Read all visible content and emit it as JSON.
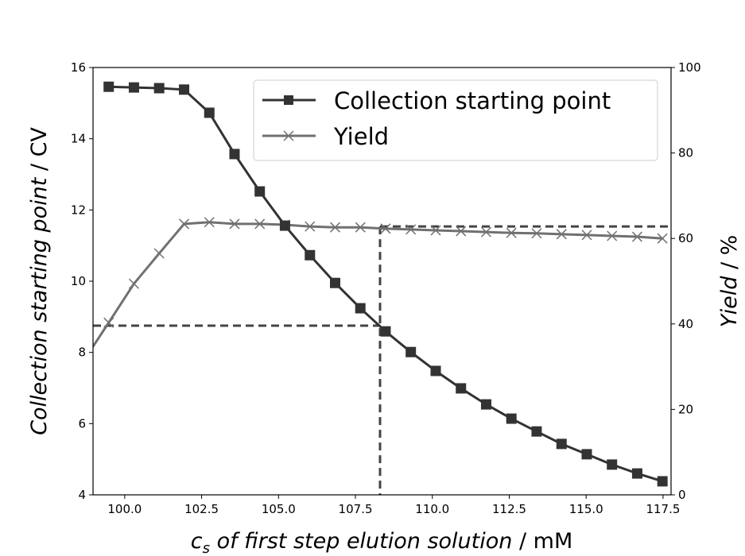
{
  "chart_data": {
    "type": "line",
    "xlabel_italic": "c",
    "xlabel_sub": "s",
    "xlabel_rest": " of first step elution solution",
    "xlabel_unit": " / mM",
    "ylabel_left": "Collection starting point",
    "ylabel_left_unit": " / CV",
    "ylabel_right": "Yield",
    "ylabel_right_unit": " / %",
    "xlim": [
      98.97,
      117.76
    ],
    "ylim_left": [
      4,
      16
    ],
    "ylim_right": [
      0,
      100
    ],
    "xticks": [
      "100.0",
      "102.5",
      "105.0",
      "107.5",
      "110.0",
      "112.5",
      "115.0",
      "117.5"
    ],
    "xtick_values": [
      100,
      102.5,
      105,
      107.5,
      110,
      112.5,
      115,
      117.5
    ],
    "yticks_left": [
      "4",
      "6",
      "8",
      "10",
      "12",
      "14",
      "16"
    ],
    "ytick_values_left": [
      4,
      6,
      8,
      10,
      12,
      14,
      16
    ],
    "yticks_right": [
      "0",
      "20",
      "40",
      "60",
      "80",
      "100"
    ],
    "ytick_values_right": [
      0,
      20,
      40,
      60,
      80,
      100
    ],
    "legend_position": "top-right",
    "x": [
      99.48,
      100.3,
      101.12,
      101.93,
      102.75,
      103.57,
      104.39,
      105.21,
      106.02,
      106.84,
      107.66,
      108.48,
      109.3,
      110.11,
      110.93,
      111.75,
      112.57,
      113.39,
      114.2,
      115.02,
      115.84,
      116.66,
      117.48
    ],
    "series": [
      {
        "name": "Collection starting point",
        "axis": "left",
        "marker": "square",
        "color": "#333333",
        "values": [
          15.46,
          15.44,
          15.42,
          15.38,
          14.73,
          13.57,
          12.52,
          11.56,
          10.73,
          9.95,
          9.24,
          8.59,
          8.01,
          7.48,
          6.99,
          6.54,
          6.14,
          5.78,
          5.43,
          5.14,
          4.85,
          4.6,
          4.38
        ]
      },
      {
        "name": "Yield",
        "axis": "right",
        "marker": "x",
        "color": "#707070",
        "x_extra_left": 98.66,
        "value_extra_left": 31.3,
        "values": [
          40.3,
          49.4,
          56.5,
          63.4,
          63.8,
          63.4,
          63.4,
          63.2,
          62.8,
          62.6,
          62.6,
          62.3,
          62.1,
          61.9,
          61.7,
          61.5,
          61.3,
          61.2,
          61.0,
          60.8,
          60.6,
          60.4,
          60.0
        ]
      }
    ],
    "annotations": {
      "dashed_x": 108.3,
      "dashed_left_y": 8.75,
      "dashed_right_y": 62.8
    }
  }
}
